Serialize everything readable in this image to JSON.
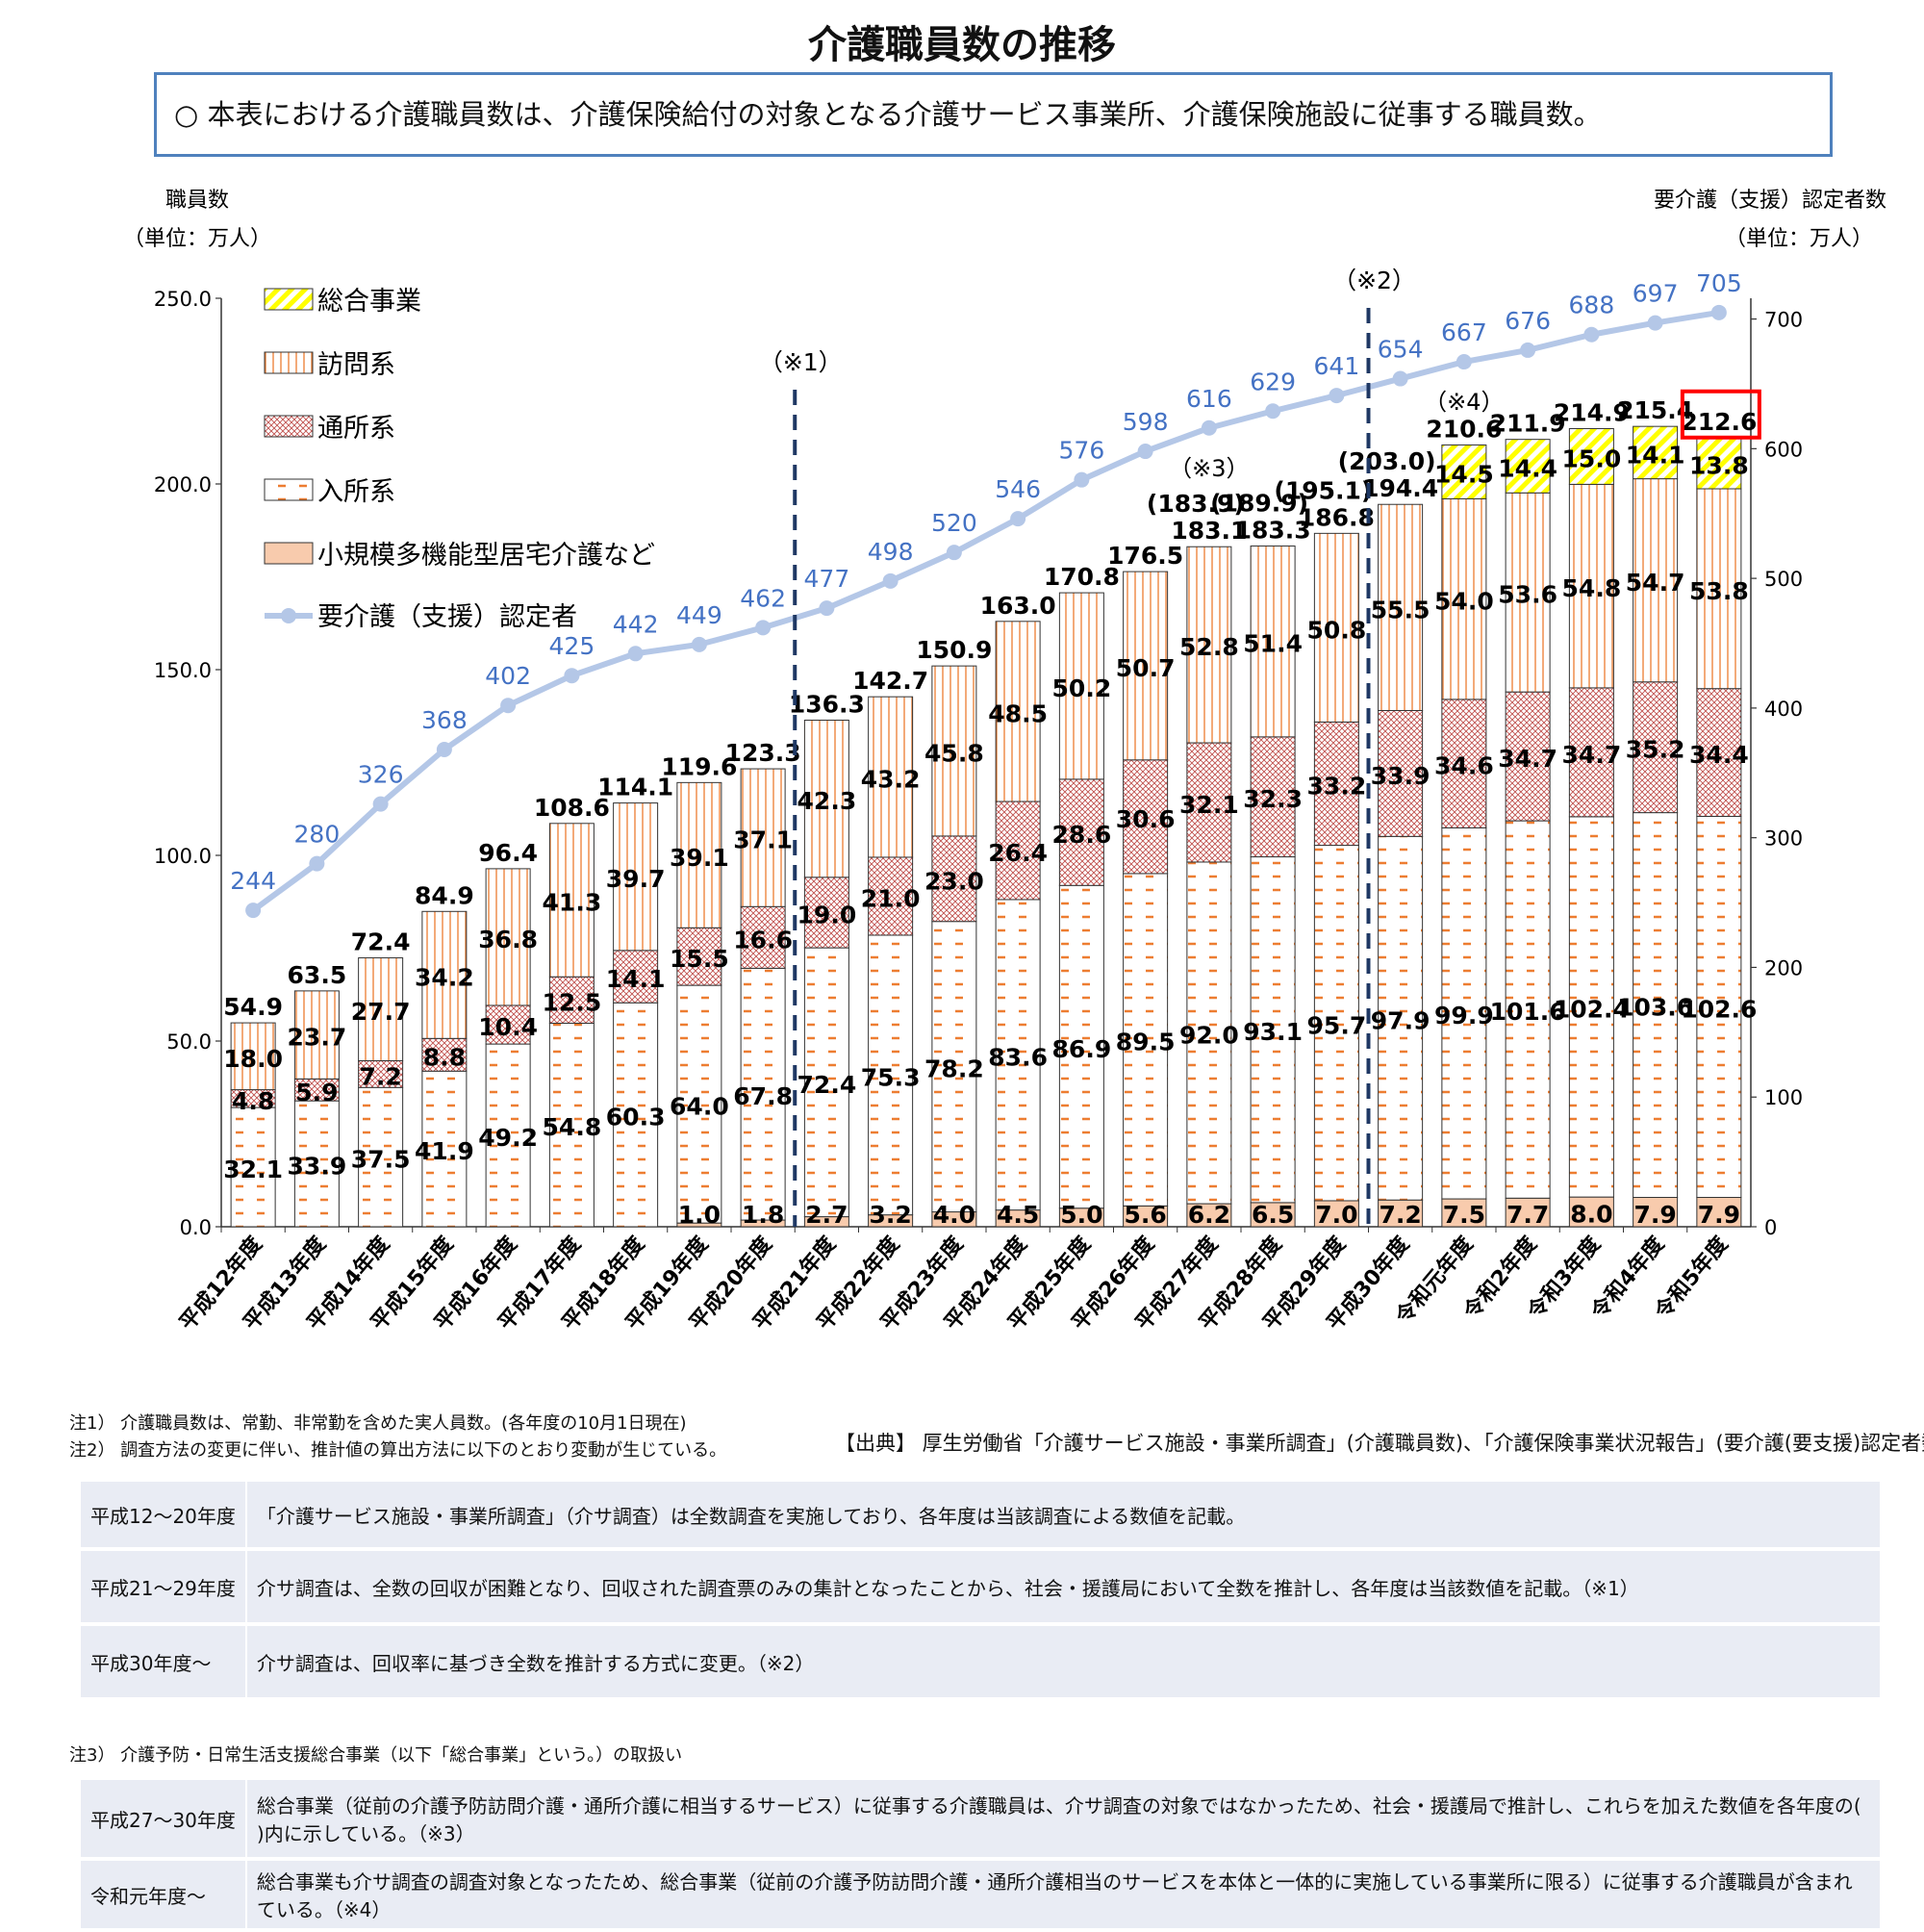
{
  "title": "介護職員数の推移",
  "note_box": "○ 本表における介護職員数は、介護保険給付の対象となる介護サービス事業所、介護保険施設に従事する職員数。",
  "chart_data": {
    "type": "bar",
    "y_left_label": [
      "職員数",
      "（単位：万人）"
    ],
    "y_right_label": [
      "要介護（支援）認定者数",
      "（単位：万人）"
    ],
    "y_left_range": [
      0,
      250
    ],
    "y_left_ticks": [
      "250.0",
      "200.0",
      "150.0",
      "100.0",
      "50.0",
      "0.0"
    ],
    "y_right_range": [
      0,
      716
    ],
    "y_right_ticks": [
      "700",
      "600",
      "500",
      "400",
      "300",
      "200",
      "100",
      "0"
    ],
    "categories": [
      "平成12年度",
      "平成13年度",
      "平成14年度",
      "平成15年度",
      "平成16年度",
      "平成17年度",
      "平成18年度",
      "平成19年度",
      "平成20年度",
      "平成21年度",
      "平成22年度",
      "平成23年度",
      "平成24年度",
      "平成25年度",
      "平成26年度",
      "平成27年度",
      "平成28年度",
      "平成29年度",
      "平成30年度",
      "令和元年度",
      "令和2年度",
      "令和3年度",
      "令和4年度",
      "令和5年度"
    ],
    "series": [
      {
        "name": "小規模多機能型居宅介護など",
        "values": [
          null,
          null,
          null,
          null,
          null,
          null,
          null,
          1.0,
          1.8,
          2.7,
          3.2,
          4.0,
          4.5,
          5.0,
          5.6,
          6.2,
          6.5,
          7.0,
          7.2,
          7.5,
          7.7,
          8.0,
          7.9,
          7.9
        ],
        "color": "#f8cbad"
      },
      {
        "name": "入所系",
        "values": [
          32.1,
          33.9,
          37.5,
          41.9,
          49.2,
          54.8,
          60.3,
          64.0,
          67.8,
          72.4,
          75.3,
          78.2,
          83.6,
          86.9,
          89.5,
          92.0,
          93.1,
          95.7,
          97.9,
          99.9,
          101.6,
          102.4,
          103.6,
          102.6
        ],
        "color": "#ed7d31"
      },
      {
        "name": "通所系",
        "values": [
          4.8,
          5.9,
          7.2,
          8.8,
          10.4,
          12.5,
          14.1,
          15.5,
          16.6,
          19.0,
          21.0,
          23.0,
          26.4,
          28.6,
          30.6,
          32.1,
          32.3,
          33.2,
          33.9,
          34.6,
          34.7,
          34.7,
          35.2,
          34.4
        ],
        "color": "#c0504d"
      },
      {
        "name": "訪問系",
        "values": [
          18.0,
          23.7,
          27.7,
          34.2,
          36.8,
          41.3,
          39.7,
          39.1,
          37.1,
          42.3,
          43.2,
          45.8,
          48.5,
          50.2,
          50.7,
          52.8,
          51.4,
          50.8,
          55.5,
          54.0,
          53.6,
          54.8,
          54.7,
          53.8
        ],
        "color": "#ed7d31"
      },
      {
        "name": "総合事業",
        "values": [
          null,
          null,
          null,
          null,
          null,
          null,
          null,
          null,
          null,
          null,
          null,
          null,
          null,
          null,
          null,
          null,
          null,
          null,
          null,
          14.5,
          14.4,
          15.0,
          14.1,
          13.8
        ],
        "color": "#ffff00"
      }
    ],
    "totals": [
      "54.9",
      "63.5",
      "72.4",
      "84.9",
      "96.4",
      "108.6",
      "114.1",
      "119.6",
      "123.3",
      "136.3",
      "142.7",
      "150.9",
      "163.0",
      "170.8",
      "176.5",
      "183.1",
      "183.3",
      "186.8",
      "194.4",
      "210.6",
      "211.9",
      "214.9",
      "215.4",
      "212.6"
    ],
    "paren_totals": [
      {
        "index": 15,
        "value": "(183.9)"
      },
      {
        "index": 16,
        "value": "(189.9)"
      },
      {
        "index": 17,
        "value": "(195.1)"
      },
      {
        "index": 18,
        "value": "(203.0)"
      }
    ],
    "line_series": {
      "name": "要介護（支援）認定者",
      "values": [
        244,
        280,
        326,
        368,
        402,
        425,
        442,
        449,
        462,
        477,
        498,
        520,
        546,
        576,
        598,
        616,
        629,
        641,
        654,
        667,
        676,
        688,
        697,
        705
      ],
      "color": "#b4c7e7",
      "label_color": "#4472c4"
    },
    "markers": [
      {
        "label": "（※1）",
        "after_index": 8
      },
      {
        "label": "（※2）",
        "after_index": 17
      },
      {
        "label": "（※3）",
        "index": 15
      },
      {
        "label": "（※4）",
        "index": 19
      }
    ],
    "highlight_index": 23,
    "legend_placement": "top-left"
  },
  "notes": {
    "n1": "注1） 介護職員数は、常勤、非常勤を含めた実人員数。(各年度の10月1日現在)",
    "n2": "注2） 調査方法の変更に伴い、推計値の算出方法に以下のとおり変動が生じている。",
    "source": "【出典】 厚生労働省「介護サービス施設・事業所調査」(介護職員数)、「介護保険事業状況報告」(要介護(要支援)認定者数)",
    "table1": [
      {
        "k": "平成12～20年度",
        "v": "「介護サービス施設・事業所調査」（介サ調査）は全数調査を実施しており、各年度は当該調査による数値を記載。"
      },
      {
        "k": "平成21～29年度",
        "v": "介サ調査は、全数の回収が困難となり、回収された調査票のみの集計となったことから、社会・援護局において全数を推計し、各年度は当該数値を記載。（※1）"
      },
      {
        "k": "平成30年度～",
        "v": "介サ調査は、回収率に基づき全数を推計する方式に変更。（※2）"
      }
    ],
    "n3": "注3） 介護予防・日常生活支援総合事業（以下「総合事業」という。）の取扱い",
    "table2": [
      {
        "k": "平成27～30年度",
        "v": "総合事業（従前の介護予防訪問介護・通所介護に相当するサービス）に従事する介護職員は、介サ調査の対象ではなかったため、社会・援護局で推計し、これらを加えた数値を各年度の( )内に示している。（※3）"
      },
      {
        "k": "令和元年度～",
        "v": "総合事業も介サ調査の調査対象となったため、総合事業（従前の介護予防訪問介護・通所介護相当のサービスを本体と一体的に実施している事業所に限る）に従事する介護職員が含まれている。（※4）"
      }
    ]
  }
}
